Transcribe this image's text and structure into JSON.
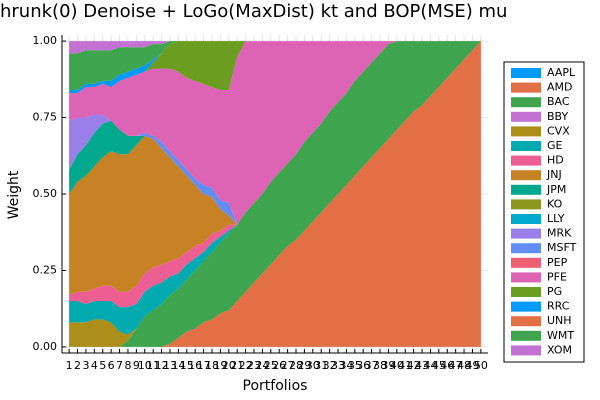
{
  "chart_data": {
    "type": "stacked_area",
    "title": "hrunk(0) Denoise + LoGo(MaxDist) kt and BOP(MSE) mu",
    "x_label": "Portfolios",
    "y_label": "Weight",
    "x": [
      1,
      2,
      3,
      4,
      5,
      6,
      7,
      8,
      9,
      10,
      11,
      12,
      13,
      14,
      15,
      16,
      17,
      18,
      19,
      20,
      21,
      22,
      23,
      24,
      25,
      26,
      27,
      28,
      29,
      30,
      31,
      32,
      33,
      34,
      35,
      36,
      37,
      38,
      39,
      40,
      41,
      42,
      43,
      44,
      45,
      46,
      47,
      48,
      49,
      50
    ],
    "xlim": [
      0.15,
      50.85
    ],
    "xticks": [
      1,
      2,
      3,
      4,
      5,
      6,
      7,
      8,
      9,
      10,
      11,
      12,
      13,
      14,
      15,
      16,
      17,
      18,
      19,
      20,
      21,
      22,
      23,
      24,
      25,
      26,
      27,
      28,
      29,
      30,
      31,
      32,
      33,
      34,
      35,
      36,
      37,
      38,
      39,
      40,
      41,
      42,
      43,
      44,
      45,
      46,
      47,
      48,
      49,
      50
    ],
    "ylim": [
      -0.02,
      1.02
    ],
    "yticks": [
      {
        "value": 0,
        "label": "0.00"
      },
      {
        "value": 0.25,
        "label": "0.25"
      },
      {
        "value": 0.5,
        "label": "0.50"
      },
      {
        "value": 0.75,
        "label": "0.75"
      },
      {
        "value": 1,
        "label": "1.00"
      }
    ],
    "grid": true,
    "legend": "right",
    "series": [
      {
        "name": "AAPL",
        "color": "#009afa",
        "values": [
          0,
          0,
          0,
          0,
          0,
          0,
          0,
          0,
          0,
          0,
          0,
          0,
          0,
          0,
          0,
          0,
          0,
          0,
          0,
          0,
          0,
          0,
          0,
          0,
          0,
          0,
          0,
          0,
          0,
          0,
          0,
          0,
          0,
          0,
          0,
          0,
          0,
          0,
          0,
          0,
          0,
          0,
          0,
          0,
          0,
          0,
          0,
          0,
          0,
          0
        ]
      },
      {
        "name": "AMD",
        "color": "#e36f47",
        "values": [
          0,
          0,
          0,
          0,
          0,
          0,
          0,
          0,
          0,
          0,
          0,
          0,
          0.01,
          0.03,
          0.05,
          0.06,
          0.08,
          0.09,
          0.11,
          0.12,
          0.15,
          0.18,
          0.21,
          0.24,
          0.27,
          0.3,
          0.33,
          0.35,
          0.38,
          0.41,
          0.44,
          0.47,
          0.5,
          0.53,
          0.56,
          0.59,
          0.62,
          0.65,
          0.68,
          0.71,
          0.74,
          0.77,
          0.79,
          0.82,
          0.85,
          0.88,
          0.91,
          0.94,
          0.97,
          1
        ]
      },
      {
        "name": "BAC",
        "color": "#3ea44e",
        "values": [
          0,
          0,
          0,
          0,
          0,
          0,
          0,
          0.02,
          0.06,
          0.1,
          0.12,
          0.14,
          0.16,
          0.16,
          0.17,
          0.19,
          0.2,
          0.22,
          0.23,
          0.25,
          0.25,
          0.26,
          0.26,
          0.26,
          0.27,
          0.27,
          0.27,
          0.28,
          0.29,
          0.29,
          0.29,
          0.3,
          0.3,
          0.3,
          0.31,
          0.31,
          0.31,
          0.31,
          0.31,
          0.29,
          0.26,
          0.23,
          0.21,
          0.18,
          0.15,
          0.12,
          0.09,
          0.06,
          0.03,
          0
        ]
      },
      {
        "name": "BBY",
        "color": "#c371d2",
        "values": [
          0,
          0,
          0,
          0,
          0,
          0,
          0,
          0,
          0,
          0,
          0,
          0,
          0,
          0,
          0,
          0,
          0,
          0,
          0,
          0,
          0,
          0,
          0,
          0,
          0,
          0,
          0,
          0,
          0,
          0,
          0,
          0,
          0,
          0,
          0,
          0,
          0,
          0,
          0,
          0,
          0,
          0,
          0,
          0,
          0,
          0,
          0,
          0,
          0,
          0
        ]
      },
      {
        "name": "CVX",
        "color": "#ac8e18",
        "values": [
          0.08,
          0.08,
          0.08,
          0.09,
          0.09,
          0.08,
          0.05,
          0.02,
          0,
          0,
          0,
          0,
          0,
          0,
          0,
          0,
          0,
          0,
          0,
          0,
          0,
          0,
          0,
          0,
          0,
          0,
          0,
          0,
          0,
          0,
          0,
          0,
          0,
          0,
          0,
          0,
          0,
          0,
          0,
          0,
          0,
          0,
          0,
          0,
          0,
          0,
          0,
          0,
          0,
          0
        ]
      },
      {
        "name": "GE",
        "color": "#00aaae",
        "values": [
          0.07,
          0.07,
          0.06,
          0.06,
          0.06,
          0.07,
          0.08,
          0.09,
          0.08,
          0.08,
          0.08,
          0.07,
          0.06,
          0.05,
          0.05,
          0.04,
          0.03,
          0.03,
          0.02,
          0.01,
          0,
          0,
          0,
          0,
          0,
          0,
          0,
          0,
          0,
          0,
          0,
          0,
          0,
          0,
          0,
          0,
          0,
          0,
          0,
          0,
          0,
          0,
          0,
          0,
          0,
          0,
          0,
          0,
          0,
          0
        ]
      },
      {
        "name": "HD",
        "color": "#ed5e93",
        "values": [
          0.02,
          0.03,
          0.04,
          0.04,
          0.05,
          0.05,
          0.05,
          0.05,
          0.06,
          0.06,
          0.06,
          0.06,
          0.05,
          0.05,
          0.04,
          0.04,
          0.03,
          0.03,
          0.02,
          0.02,
          0,
          0,
          0,
          0,
          0,
          0,
          0,
          0,
          0,
          0,
          0,
          0,
          0,
          0,
          0,
          0,
          0,
          0,
          0,
          0,
          0,
          0,
          0,
          0,
          0,
          0,
          0,
          0,
          0,
          0
        ]
      },
      {
        "name": "JNJ",
        "color": "#c68225",
        "values": [
          0.33,
          0.36,
          0.38,
          0.4,
          0.42,
          0.44,
          0.45,
          0.45,
          0.46,
          0.45,
          0.42,
          0.38,
          0.34,
          0.3,
          0.25,
          0.2,
          0.16,
          0.12,
          0.07,
          0.03,
          0,
          0,
          0,
          0,
          0,
          0,
          0,
          0,
          0,
          0,
          0,
          0,
          0,
          0,
          0,
          0,
          0,
          0,
          0,
          0,
          0,
          0,
          0,
          0,
          0,
          0,
          0,
          0,
          0,
          0
        ]
      },
      {
        "name": "JPM",
        "color": "#00a98d",
        "values": [
          0.08,
          0.09,
          0.1,
          0.11,
          0.11,
          0.1,
          0.08,
          0.06,
          0.03,
          0,
          0,
          0,
          0,
          0,
          0,
          0,
          0,
          0,
          0,
          0,
          0,
          0,
          0,
          0,
          0,
          0,
          0,
          0,
          0,
          0,
          0,
          0,
          0,
          0,
          0,
          0,
          0,
          0,
          0,
          0,
          0,
          0,
          0,
          0,
          0,
          0,
          0,
          0,
          0,
          0
        ]
      },
      {
        "name": "KO",
        "color": "#8e971d",
        "values": [
          0,
          0,
          0,
          0,
          0,
          0,
          0,
          0,
          0,
          0,
          0,
          0,
          0,
          0,
          0,
          0,
          0,
          0,
          0,
          0,
          0,
          0,
          0,
          0,
          0,
          0,
          0,
          0,
          0,
          0,
          0,
          0,
          0,
          0,
          0,
          0,
          0,
          0,
          0,
          0,
          0,
          0,
          0,
          0,
          0,
          0,
          0,
          0,
          0,
          0
        ]
      },
      {
        "name": "LLY",
        "color": "#00a9cd",
        "values": [
          0,
          0,
          0,
          0,
          0,
          0,
          0,
          0,
          0,
          0,
          0,
          0,
          0,
          0,
          0,
          0,
          0,
          0,
          0,
          0,
          0,
          0,
          0,
          0,
          0,
          0,
          0,
          0,
          0,
          0,
          0,
          0,
          0,
          0,
          0,
          0,
          0,
          0,
          0,
          0,
          0,
          0,
          0,
          0,
          0,
          0,
          0,
          0,
          0,
          0
        ]
      },
      {
        "name": "MRK",
        "color": "#9b7fe8",
        "values": [
          0.16,
          0.12,
          0.09,
          0.06,
          0.03,
          0,
          0,
          0,
          0,
          0,
          0,
          0,
          0,
          0,
          0,
          0,
          0,
          0,
          0,
          0,
          0,
          0,
          0,
          0,
          0,
          0,
          0,
          0,
          0,
          0,
          0,
          0,
          0,
          0,
          0,
          0,
          0,
          0,
          0,
          0,
          0,
          0,
          0,
          0,
          0,
          0,
          0,
          0,
          0,
          0
        ]
      },
      {
        "name": "MSFT",
        "color": "#618df6",
        "values": [
          0,
          0,
          0,
          0,
          0,
          0,
          0,
          0,
          0,
          0.01,
          0.01,
          0.02,
          0.02,
          0.02,
          0.02,
          0.02,
          0.03,
          0.03,
          0.03,
          0.04,
          0,
          0,
          0,
          0,
          0,
          0,
          0,
          0,
          0,
          0,
          0,
          0,
          0,
          0,
          0,
          0,
          0,
          0,
          0,
          0,
          0,
          0,
          0,
          0,
          0,
          0,
          0,
          0,
          0,
          0
        ]
      },
      {
        "name": "PEP",
        "color": "#f05f73",
        "values": [
          0,
          0,
          0,
          0,
          0,
          0,
          0,
          0,
          0,
          0,
          0,
          0,
          0,
          0,
          0,
          0,
          0,
          0,
          0,
          0,
          0,
          0,
          0,
          0,
          0,
          0,
          0,
          0,
          0,
          0,
          0,
          0,
          0,
          0,
          0,
          0,
          0,
          0,
          0,
          0,
          0,
          0,
          0,
          0,
          0,
          0,
          0,
          0,
          0,
          0
        ]
      },
      {
        "name": "PFE",
        "color": "#dd64b5",
        "values": [
          0.09,
          0.08,
          0.1,
          0.09,
          0.1,
          0.11,
          0.16,
          0.19,
          0.2,
          0.2,
          0.22,
          0.24,
          0.27,
          0.29,
          0.3,
          0.32,
          0.33,
          0.33,
          0.36,
          0.37,
          0.55,
          0.56,
          0.53,
          0.5,
          0.46,
          0.43,
          0.4,
          0.37,
          0.33,
          0.3,
          0.27,
          0.23,
          0.2,
          0.17,
          0.13,
          0.1,
          0.07,
          0.04,
          0.01,
          0,
          0,
          0,
          0,
          0,
          0,
          0,
          0,
          0,
          0,
          0
        ]
      },
      {
        "name": "PG",
        "color": "#6b9d20",
        "values": [
          0,
          0,
          0,
          0,
          0,
          0,
          0,
          0,
          0,
          0,
          0.02,
          0.05,
          0.08,
          0.1,
          0.12,
          0.13,
          0.14,
          0.15,
          0.16,
          0.16,
          0.05,
          0,
          0,
          0,
          0,
          0,
          0,
          0,
          0,
          0,
          0,
          0,
          0,
          0,
          0,
          0,
          0,
          0,
          0,
          0,
          0,
          0,
          0,
          0,
          0,
          0,
          0,
          0,
          0,
          0
        ]
      },
      {
        "name": "RRC",
        "color": "#009afa",
        "values": [
          0.01,
          0.01,
          0.01,
          0.01,
          0.01,
          0.02,
          0.02,
          0.02,
          0.02,
          0.02,
          0.01,
          0,
          0,
          0,
          0,
          0,
          0,
          0,
          0,
          0,
          0,
          0,
          0,
          0,
          0,
          0,
          0,
          0,
          0,
          0,
          0,
          0,
          0,
          0,
          0,
          0,
          0,
          0,
          0,
          0,
          0,
          0,
          0,
          0,
          0,
          0,
          0,
          0,
          0,
          0
        ]
      },
      {
        "name": "UNH",
        "color": "#e36f47",
        "values": [
          0,
          0,
          0,
          0,
          0,
          0,
          0,
          0,
          0,
          0,
          0,
          0,
          0,
          0,
          0,
          0,
          0,
          0,
          0,
          0,
          0,
          0,
          0,
          0,
          0,
          0,
          0,
          0,
          0,
          0,
          0,
          0,
          0,
          0,
          0,
          0,
          0,
          0,
          0,
          0,
          0,
          0,
          0,
          0,
          0,
          0,
          0,
          0,
          0,
          0
        ]
      },
      {
        "name": "WMT",
        "color": "#3ea44e",
        "values": [
          0.12,
          0.12,
          0.11,
          0.11,
          0.1,
          0.1,
          0.09,
          0.08,
          0.07,
          0.06,
          0.05,
          0.03,
          0.01,
          0,
          0,
          0,
          0,
          0,
          0,
          0,
          0,
          0,
          0,
          0,
          0,
          0,
          0,
          0,
          0,
          0,
          0,
          0,
          0,
          0,
          0,
          0,
          0,
          0,
          0,
          0,
          0,
          0,
          0,
          0,
          0,
          0,
          0,
          0,
          0,
          0
        ]
      },
      {
        "name": "XOM",
        "color": "#c371d2",
        "values": [
          0.04,
          0.04,
          0.03,
          0.03,
          0.03,
          0.03,
          0.02,
          0.02,
          0.02,
          0.02,
          0.01,
          0.01,
          0,
          0,
          0,
          0,
          0,
          0,
          0,
          0,
          0,
          0,
          0,
          0,
          0,
          0,
          0,
          0,
          0,
          0,
          0,
          0,
          0,
          0,
          0,
          0,
          0,
          0,
          0,
          0,
          0,
          0,
          0,
          0,
          0,
          0,
          0,
          0,
          0,
          0
        ]
      }
    ]
  }
}
